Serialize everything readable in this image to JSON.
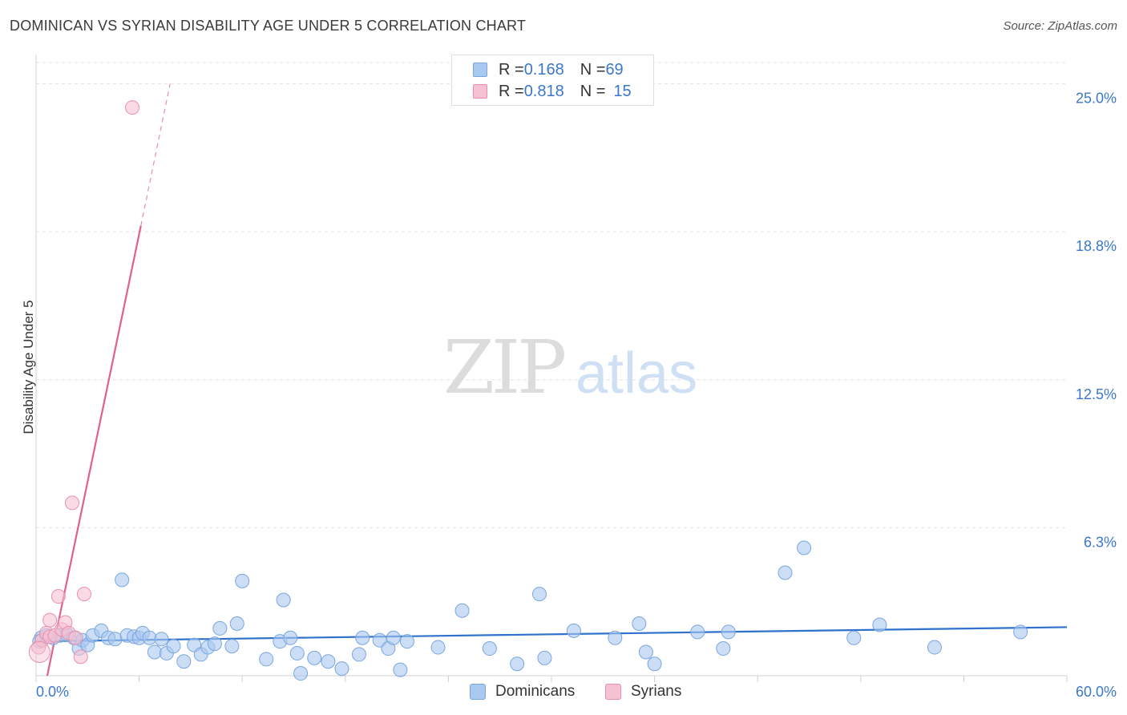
{
  "title": "DOMINICAN VS SYRIAN DISABILITY AGE UNDER 5 CORRELATION CHART",
  "source": "Source: ZipAtlas.com",
  "watermark": {
    "zip": "ZIP",
    "atlas": "atlas"
  },
  "legend": {
    "rows": [
      {
        "r_label": "R = ",
        "r_value": "0.168",
        "n_label": "N = ",
        "n_value": "69",
        "color": "#a9c8f0",
        "border": "#7aa6de"
      },
      {
        "r_label": "R = ",
        "r_value": "0.818",
        "n_label": "N = ",
        "n_value": "15",
        "color": "#f6c1d2",
        "border": "#e98fae"
      }
    ]
  },
  "bottom_legend": {
    "dominicans": "Dominicans",
    "syrians": "Syrians"
  },
  "chart_data": {
    "type": "scatter",
    "title": "DOMINICAN VS SYRIAN DISABILITY AGE UNDER 5 CORRELATION CHART",
    "xlabel": "",
    "ylabel": "Disability Age Under 5",
    "xlim": [
      0,
      60
    ],
    "ylim": [
      0,
      26
    ],
    "x_tick_labels": [
      "0.0%",
      "60.0%"
    ],
    "y_ticks": [
      6.25,
      12.5,
      18.75,
      25.0
    ],
    "y_tick_labels": [
      "6.3%",
      "12.5%",
      "18.8%",
      "25.0%"
    ],
    "grid": true,
    "legend_position": "top-center",
    "series": [
      {
        "name": "Dominicans",
        "color": "#a9c8f0",
        "stroke": "#7aa6de",
        "line_color": "#2e72cc",
        "trend": {
          "x0": 0.0,
          "y0": 1.45,
          "x1": 60.0,
          "y1": 2.05
        },
        "points": [
          [
            0.3,
            1.6
          ],
          [
            0.6,
            1.7
          ],
          [
            1.0,
            1.6
          ],
          [
            1.4,
            1.7
          ],
          [
            1.8,
            1.75
          ],
          [
            2.2,
            1.6
          ],
          [
            2.5,
            1.15
          ],
          [
            2.7,
            1.5
          ],
          [
            3.0,
            1.3
          ],
          [
            3.3,
            1.7
          ],
          [
            3.8,
            1.9
          ],
          [
            4.2,
            1.6
          ],
          [
            4.6,
            1.55
          ],
          [
            5.0,
            4.05
          ],
          [
            5.3,
            1.7
          ],
          [
            5.7,
            1.65
          ],
          [
            6.0,
            1.6
          ],
          [
            6.2,
            1.8
          ],
          [
            6.6,
            1.6
          ],
          [
            6.9,
            1.0
          ],
          [
            7.3,
            1.55
          ],
          [
            7.6,
            0.95
          ],
          [
            8.0,
            1.25
          ],
          [
            8.6,
            0.6
          ],
          [
            9.2,
            1.3
          ],
          [
            9.6,
            0.9
          ],
          [
            10.0,
            1.2
          ],
          [
            10.4,
            1.35
          ],
          [
            10.7,
            2.0
          ],
          [
            11.4,
            1.25
          ],
          [
            11.7,
            2.2
          ],
          [
            12.0,
            4.0
          ],
          [
            13.4,
            0.7
          ],
          [
            14.2,
            1.45
          ],
          [
            14.4,
            3.2
          ],
          [
            14.8,
            1.6
          ],
          [
            15.2,
            0.95
          ],
          [
            15.4,
            0.1
          ],
          [
            16.2,
            0.75
          ],
          [
            17.0,
            0.6
          ],
          [
            17.8,
            0.3
          ],
          [
            18.8,
            0.9
          ],
          [
            19.0,
            1.6
          ],
          [
            20.0,
            1.5
          ],
          [
            20.5,
            1.15
          ],
          [
            20.8,
            1.6
          ],
          [
            21.2,
            0.25
          ],
          [
            21.6,
            1.45
          ],
          [
            23.4,
            1.2
          ],
          [
            24.8,
            2.75
          ],
          [
            26.4,
            1.15
          ],
          [
            28.0,
            0.5
          ],
          [
            29.3,
            3.45
          ],
          [
            29.6,
            0.75
          ],
          [
            31.3,
            1.9
          ],
          [
            33.7,
            1.6
          ],
          [
            35.1,
            2.2
          ],
          [
            35.5,
            1.0
          ],
          [
            36.0,
            0.5
          ],
          [
            38.5,
            1.85
          ],
          [
            40.0,
            1.15
          ],
          [
            40.3,
            1.85
          ],
          [
            43.6,
            4.35
          ],
          [
            44.7,
            5.4
          ],
          [
            47.6,
            1.6
          ],
          [
            49.1,
            2.15
          ],
          [
            52.3,
            1.2
          ],
          [
            57.3,
            1.85
          ],
          [
            0.2,
            1.45
          ]
        ]
      },
      {
        "name": "Syrians",
        "color": "#f6c1d2",
        "stroke": "#e98fae",
        "line_color": "#e0608e",
        "trend": {
          "x0": 0.65,
          "y0": 0.0,
          "x1": 6.1,
          "y1": 19.0
        },
        "trend_dashed": {
          "x0": 6.1,
          "y0": 19.0,
          "x1": 7.8,
          "y1": 25.0
        },
        "points": [
          [
            0.15,
            1.2
          ],
          [
            0.35,
            1.5
          ],
          [
            0.6,
            1.8
          ],
          [
            0.8,
            1.65
          ],
          [
            0.8,
            2.35
          ],
          [
            1.1,
            1.7
          ],
          [
            1.3,
            3.35
          ],
          [
            1.5,
            1.95
          ],
          [
            1.7,
            2.25
          ],
          [
            1.9,
            1.8
          ],
          [
            2.1,
            7.3
          ],
          [
            2.3,
            1.6
          ],
          [
            2.6,
            0.8
          ],
          [
            2.8,
            3.45
          ],
          [
            5.6,
            24.0
          ]
        ]
      }
    ]
  }
}
